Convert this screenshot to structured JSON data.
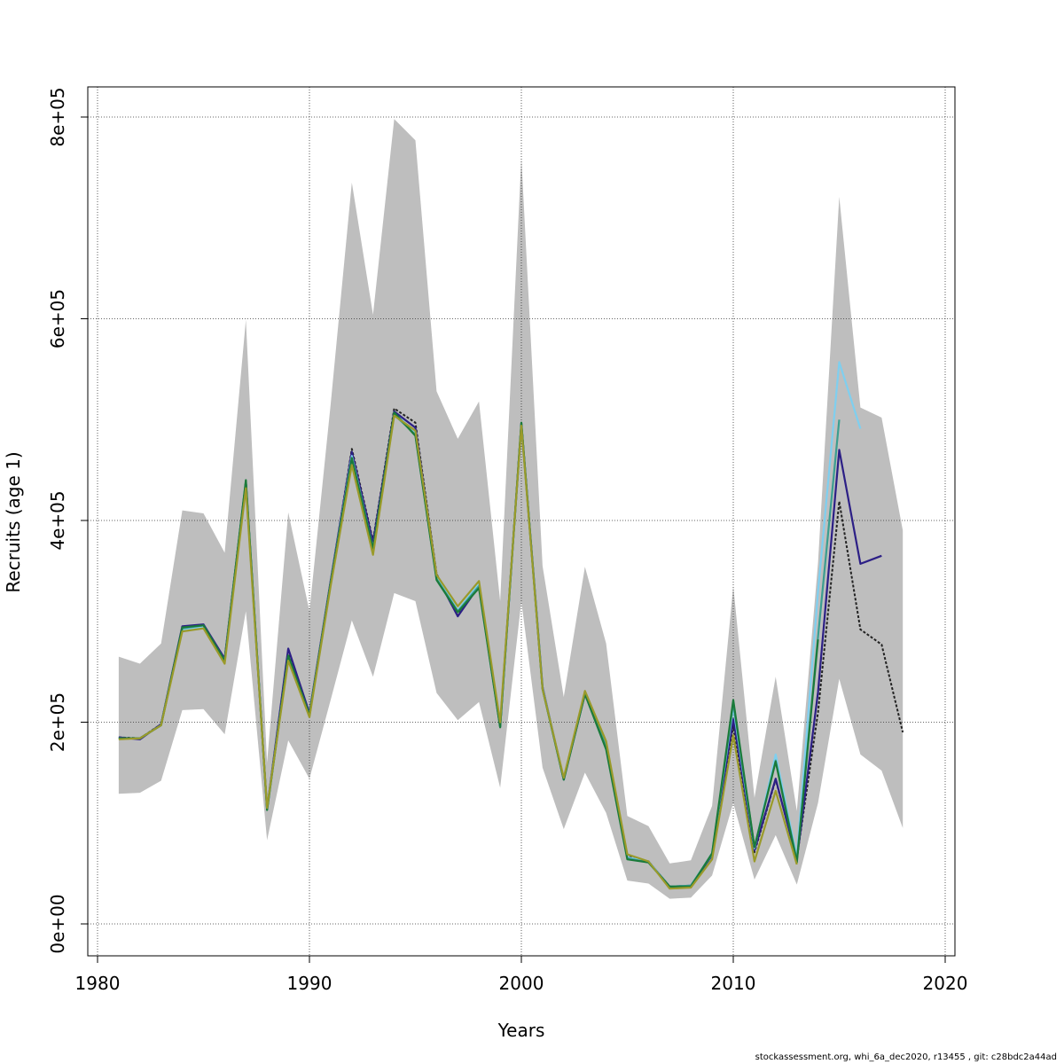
{
  "footer": "stockassessment.org, whi_6a_dec2020, r13455 , git: c28bdc2a44ad",
  "chart_data": {
    "type": "line",
    "title": "",
    "xlabel": "Years",
    "ylabel": "Recruits (age 1)",
    "xlim": [
      1980,
      2020
    ],
    "ylim": [
      0,
      800000
    ],
    "x_ticks": [
      1980,
      1990,
      2000,
      2010,
      2020
    ],
    "x_tick_labels": [
      "1980",
      "1990",
      "2000",
      "2010",
      "2020"
    ],
    "y_ticks": [
      0,
      200000,
      400000,
      600000,
      800000
    ],
    "y_tick_labels": [
      "0e+00",
      "2e+05",
      "4e+05",
      "6e+05",
      "8e+05"
    ],
    "grid": true,
    "legend": "none",
    "confidence_band": {
      "color": "#bebebe",
      "x": [
        1981,
        1982,
        1983,
        1984,
        1985,
        1986,
        1987,
        1988,
        1989,
        1990,
        1991,
        1992,
        1993,
        1994,
        1995,
        1996,
        1997,
        1998,
        1999,
        2000,
        2001,
        2002,
        2003,
        2004,
        2005,
        2006,
        2007,
        2008,
        2009,
        2010,
        2011,
        2012,
        2013,
        2014,
        2015,
        2016,
        2017,
        2018
      ],
      "lower": [
        129000,
        130000,
        142000,
        212000,
        213000,
        188000,
        310000,
        83000,
        182000,
        144000,
        222000,
        301000,
        245000,
        328000,
        320000,
        229000,
        202000,
        220000,
        135000,
        320000,
        155000,
        94000,
        150000,
        110000,
        43000,
        40000,
        25000,
        26000,
        48000,
        120000,
        44000,
        88000,
        39000,
        120000,
        243000,
        168000,
        152000,
        95000
      ],
      "upper": [
        265000,
        258000,
        278000,
        410000,
        407000,
        368000,
        599000,
        160000,
        408000,
        310000,
        515000,
        735000,
        604000,
        798000,
        777000,
        528000,
        481000,
        518000,
        320000,
        760000,
        355000,
        225000,
        354000,
        278000,
        107000,
        97000,
        60000,
        63000,
        117000,
        335000,
        125000,
        245000,
        112000,
        358000,
        721000,
        512000,
        502000,
        390000
      ]
    },
    "series": [
      {
        "color": "#222222",
        "dash": true,
        "x": [
          1981,
          1982,
          1983,
          1984,
          1985,
          1986,
          1987,
          1988,
          1989,
          1990,
          1991,
          1992,
          1993,
          1994,
          1995,
          1996,
          1997,
          1998,
          1999,
          2000,
          2001,
          2002,
          2003,
          2004,
          2005,
          2006,
          2007,
          2008,
          2009,
          2010,
          2011,
          2012,
          2013,
          2014,
          2015,
          2016,
          2017,
          2018
        ],
        "values": [
          185000,
          184000,
          198000,
          294000,
          296000,
          262000,
          439000,
          114000,
          270000,
          207000,
          338000,
          471000,
          380000,
          511000,
          497000,
          347000,
          306000,
          337000,
          195000,
          497000,
          234000,
          144000,
          229000,
          177000,
          67000,
          62000,
          37000,
          38000,
          68000,
          196000,
          71000,
          143000,
          65000,
          210000,
          419000,
          292000,
          277000,
          190000
        ]
      },
      {
        "color": "#2c1f86",
        "dash": false,
        "x": [
          1981,
          1982,
          1983,
          1984,
          1985,
          1986,
          1987,
          1988,
          1989,
          1990,
          1991,
          1992,
          1993,
          1994,
          1995,
          1996,
          1997,
          1998,
          1999,
          2000,
          2001,
          2002,
          2003,
          2004,
          2005,
          2006,
          2007,
          2008,
          2009,
          2010,
          2011,
          2012,
          2013,
          2014,
          2015,
          2016,
          2017
        ],
        "values": [
          185000,
          183000,
          198000,
          295000,
          297000,
          263000,
          438000,
          114000,
          273000,
          209000,
          340000,
          468000,
          378000,
          508000,
          492000,
          345000,
          305000,
          335000,
          196000,
          496000,
          235000,
          143000,
          228000,
          176000,
          66000,
          62000,
          37000,
          38000,
          68000,
          203000,
          73000,
          144000,
          64000,
          230000,
          470000,
          357000,
          365000
        ]
      },
      {
        "color": "#7fcfef",
        "dash": false,
        "x": [
          1981,
          1982,
          1983,
          1984,
          1985,
          1986,
          1987,
          1988,
          1989,
          1990,
          1991,
          1992,
          1993,
          1994,
          1995,
          1996,
          1997,
          1998,
          1999,
          2000,
          2001,
          2002,
          2003,
          2004,
          2005,
          2006,
          2007,
          2008,
          2009,
          2010,
          2011,
          2012,
          2013,
          2014,
          2015,
          2016
        ],
        "values": [
          184000,
          184000,
          197000,
          292000,
          295000,
          261000,
          437000,
          114000,
          265000,
          207000,
          338000,
          464000,
          372000,
          506000,
          488000,
          344000,
          311000,
          337000,
          196000,
          495000,
          234000,
          144000,
          229000,
          178000,
          66000,
          62000,
          37000,
          38000,
          70000,
          215000,
          75000,
          168000,
          66000,
          330000,
          557000,
          491000
        ]
      },
      {
        "color": "#3a9e90",
        "dash": false,
        "x": [
          1981,
          1982,
          1983,
          1984,
          1985,
          1986,
          1987,
          1988,
          1989,
          1990,
          1991,
          1992,
          1993,
          1994,
          1995,
          1996,
          1997,
          1998,
          1999,
          2000,
          2001,
          2002,
          2003,
          2004,
          2005,
          2006,
          2007,
          2008,
          2009,
          2010,
          2011,
          2012,
          2013,
          2014,
          2015
        ],
        "values": [
          184000,
          184000,
          197000,
          293000,
          296000,
          260000,
          438000,
          113000,
          264000,
          206000,
          337000,
          461000,
          370000,
          505000,
          485000,
          342000,
          310000,
          335000,
          195000,
          496000,
          233000,
          143000,
          229000,
          176000,
          65000,
          61000,
          37000,
          38000,
          69000,
          219000,
          76000,
          162000,
          63000,
          285000,
          500000
        ]
      },
      {
        "color": "#1a7a3a",
        "dash": false,
        "x": [
          1981,
          1982,
          1983,
          1984,
          1985,
          1986,
          1987,
          1988,
          1989,
          1990,
          1991,
          1992,
          1993,
          1994,
          1995,
          1996,
          1997,
          1998,
          1999,
          2000,
          2001,
          2002,
          2003,
          2004,
          2005,
          2006,
          2007,
          2008,
          2009,
          2010,
          2011,
          2012,
          2013,
          2014
        ],
        "values": [
          184000,
          184000,
          197000,
          294000,
          296000,
          261000,
          440000,
          113000,
          266000,
          207000,
          338000,
          462000,
          372000,
          507000,
          484000,
          341000,
          309000,
          333000,
          195000,
          497000,
          233000,
          143000,
          228000,
          173000,
          64000,
          61000,
          37000,
          37000,
          70000,
          222000,
          76000,
          161000,
          61000,
          282000
        ]
      },
      {
        "color": "#9a9a2a",
        "dash": false,
        "x": [
          1981,
          1982,
          1983,
          1984,
          1985,
          1986,
          1987,
          1988,
          1989,
          1990,
          1991,
          1992,
          1993,
          1994,
          1995,
          1996,
          1997,
          1998,
          1999,
          2000,
          2001,
          2002,
          2003,
          2004,
          2005,
          2006,
          2007,
          2008,
          2009,
          2010,
          2011,
          2012,
          2013
        ],
        "values": [
          183000,
          184000,
          197000,
          290000,
          293000,
          258000,
          432000,
          115000,
          261000,
          205000,
          335000,
          455000,
          366000,
          504000,
          489000,
          346000,
          315000,
          340000,
          200000,
          494000,
          233000,
          145000,
          231000,
          181000,
          69000,
          62000,
          35000,
          36000,
          64000,
          187000,
          62000,
          132000,
          59000
        ]
      }
    ]
  }
}
